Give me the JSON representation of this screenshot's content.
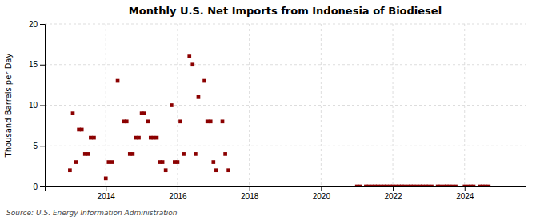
{
  "chart_data": {
    "type": "scatter",
    "title": "Monthly U.S. Net Imports from Indonesia of Biodiesel",
    "ylabel": "Thousand Barrels per Day",
    "annotations": [
      "Source: U.S. Energy Information Administration"
    ],
    "color": "#8b0000",
    "marker": "square",
    "grid": true,
    "xlim": [
      2012.3,
      2025.7
    ],
    "xticks": [
      2014,
      2016,
      2018,
      2020,
      2022,
      2024
    ],
    "ylim": [
      0,
      20
    ],
    "yticks": [
      0,
      5,
      10,
      15,
      20
    ],
    "x": [
      2013.0,
      2013.08,
      2013.17,
      2013.25,
      2013.33,
      2013.42,
      2013.5,
      2013.58,
      2013.67,
      2014.0,
      2014.08,
      2014.17,
      2014.33,
      2014.5,
      2014.58,
      2014.67,
      2014.75,
      2014.83,
      2014.92,
      2015.0,
      2015.08,
      2015.17,
      2015.25,
      2015.33,
      2015.42,
      2015.5,
      2015.58,
      2015.67,
      2015.83,
      2015.92,
      2016.0,
      2016.08,
      2016.17,
      2016.33,
      2016.42,
      2016.5,
      2016.58,
      2016.75,
      2016.83,
      2016.92,
      2017.0,
      2017.08,
      2017.25,
      2017.33,
      2017.42,
      2021.0,
      2021.08,
      2021.25,
      2021.33,
      2021.42,
      2021.5,
      2021.58,
      2021.67,
      2021.75,
      2021.83,
      2021.92,
      2022.0,
      2022.08,
      2022.17,
      2022.25,
      2022.33,
      2022.42,
      2022.5,
      2022.58,
      2022.67,
      2022.75,
      2022.83,
      2022.92,
      2023.0,
      2023.08,
      2023.25,
      2023.33,
      2023.42,
      2023.5,
      2023.58,
      2023.67,
      2023.75,
      2024.0,
      2024.08,
      2024.17,
      2024.25,
      2024.42,
      2024.5,
      2024.58,
      2024.67
    ],
    "values": [
      2,
      9,
      3,
      7,
      7,
      4,
      4,
      6,
      6,
      1,
      3,
      3,
      13,
      8,
      8,
      4,
      4,
      6,
      6,
      9,
      9,
      8,
      6,
      6,
      6,
      3,
      3,
      2,
      10,
      3,
      3,
      8,
      4,
      16,
      15,
      4,
      11,
      13,
      8,
      8,
      3,
      2,
      8,
      4,
      2,
      0,
      0,
      0,
      0,
      0,
      0,
      0,
      0,
      0,
      0,
      0,
      0,
      0,
      0,
      0,
      0,
      0,
      0,
      0,
      0,
      0,
      0,
      0,
      0,
      0,
      0,
      0,
      0,
      0,
      0,
      0,
      0,
      0,
      0,
      0,
      0,
      0,
      0,
      0,
      0
    ]
  }
}
